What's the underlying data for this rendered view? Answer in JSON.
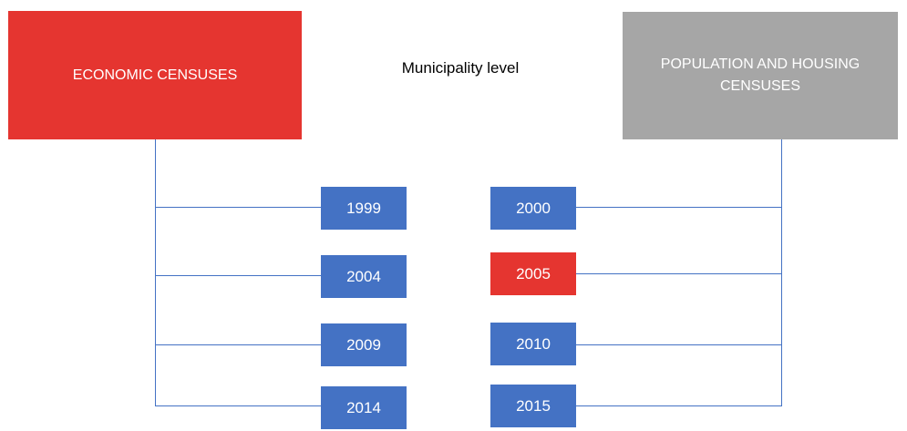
{
  "left": {
    "title": "ECONOMIC CENSUSES",
    "years": [
      "1999",
      "2004",
      "2009",
      "2014"
    ]
  },
  "center": {
    "title": "Municipality level"
  },
  "right": {
    "title": "POPULATION AND HOUSING CENSUSES",
    "years": [
      "2000",
      "2005",
      "2010",
      "2015"
    ]
  }
}
